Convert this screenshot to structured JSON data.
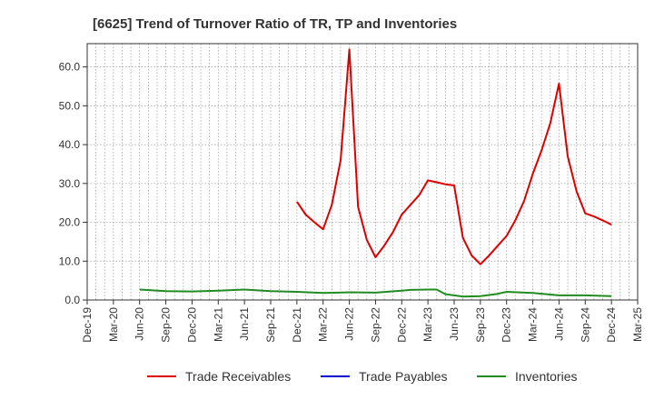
{
  "chart_data": {
    "type": "line",
    "title": "[6625]  Trend of Turnover Ratio of TR, TP and Inventories",
    "xlabel": "",
    "ylabel": "",
    "ylim": [
      0,
      66
    ],
    "yticks": [
      0,
      10,
      20,
      30,
      40,
      50,
      60
    ],
    "ytick_labels": [
      "0.0",
      "10.0",
      "20.0",
      "30.0",
      "40.0",
      "50.0",
      "60.0"
    ],
    "x_start": "Dec-19",
    "x_end": "Mar-25",
    "xtick_labels": [
      "Dec-19",
      "Mar-20",
      "Jun-20",
      "Sep-20",
      "Dec-20",
      "Mar-21",
      "Jun-21",
      "Sep-21",
      "Dec-21",
      "Mar-22",
      "Jun-22",
      "Sep-22",
      "Dec-22",
      "Mar-23",
      "Jun-23",
      "Sep-23",
      "Dec-23",
      "Mar-24",
      "Jun-24",
      "Sep-24",
      "Dec-24",
      "Mar-25"
    ],
    "grid": true,
    "legend_position": "bottom",
    "series": [
      {
        "name": "Trade Receivables",
        "color": "#dd0000",
        "points": [
          [
            "Dec-21",
            25.3
          ],
          [
            "Jan-22",
            22.0
          ],
          [
            "Feb-22",
            20.0
          ],
          [
            "Mar-22",
            18.2
          ],
          [
            "Apr-22",
            24.5
          ],
          [
            "May-22",
            36.0
          ],
          [
            "Jun-22",
            64.5
          ],
          [
            "Jul-22",
            24.0
          ],
          [
            "Aug-22",
            15.5
          ],
          [
            "Sep-22",
            11.0
          ],
          [
            "Oct-22",
            14.0
          ],
          [
            "Nov-22",
            17.5
          ],
          [
            "Dec-22",
            22.0
          ],
          [
            "Jan-23",
            24.5
          ],
          [
            "Feb-23",
            27.0
          ],
          [
            "Mar-23",
            30.8
          ],
          [
            "Apr-23",
            30.3
          ],
          [
            "May-23",
            29.8
          ],
          [
            "Jun-23",
            29.5
          ],
          [
            "Jul-23",
            16.0
          ],
          [
            "Aug-23",
            11.5
          ],
          [
            "Sep-23",
            9.2
          ],
          [
            "Oct-23",
            11.5
          ],
          [
            "Nov-23",
            14.0
          ],
          [
            "Dec-23",
            16.5
          ],
          [
            "Jan-24",
            20.5
          ],
          [
            "Feb-24",
            25.5
          ],
          [
            "Mar-24",
            32.5
          ],
          [
            "Apr-24",
            38.5
          ],
          [
            "May-24",
            45.5
          ],
          [
            "Jun-24",
            55.7
          ],
          [
            "Jul-24",
            37.0
          ],
          [
            "Aug-24",
            28.0
          ],
          [
            "Sep-24",
            22.3
          ],
          [
            "Oct-24",
            21.5
          ],
          [
            "Nov-24",
            20.5
          ],
          [
            "Dec-24",
            19.4
          ]
        ]
      },
      {
        "name": "Trade Payables",
        "color": "#0000cc",
        "points": []
      },
      {
        "name": "Inventories",
        "color": "#228b22",
        "points": [
          [
            "Jun-20",
            2.7
          ],
          [
            "Sep-20",
            2.3
          ],
          [
            "Dec-20",
            2.2
          ],
          [
            "Mar-21",
            2.4
          ],
          [
            "Jun-21",
            2.7
          ],
          [
            "Sep-21",
            2.3
          ],
          [
            "Dec-21",
            2.1
          ],
          [
            "Mar-22",
            1.8
          ],
          [
            "Jun-22",
            2.0
          ],
          [
            "Sep-22",
            1.9
          ],
          [
            "Dec-22",
            2.4
          ],
          [
            "Jan-23",
            2.6
          ],
          [
            "Mar-23",
            2.7
          ],
          [
            "Apr-23",
            2.7
          ],
          [
            "May-23",
            1.5
          ],
          [
            "Jun-23",
            1.2
          ],
          [
            "Jul-23",
            0.9
          ],
          [
            "Sep-23",
            1.0
          ],
          [
            "Nov-23",
            1.6
          ],
          [
            "Dec-23",
            2.1
          ],
          [
            "Mar-24",
            1.8
          ],
          [
            "Jun-24",
            1.2
          ],
          [
            "Sep-24",
            1.2
          ],
          [
            "Dec-24",
            1.0
          ]
        ]
      }
    ]
  }
}
